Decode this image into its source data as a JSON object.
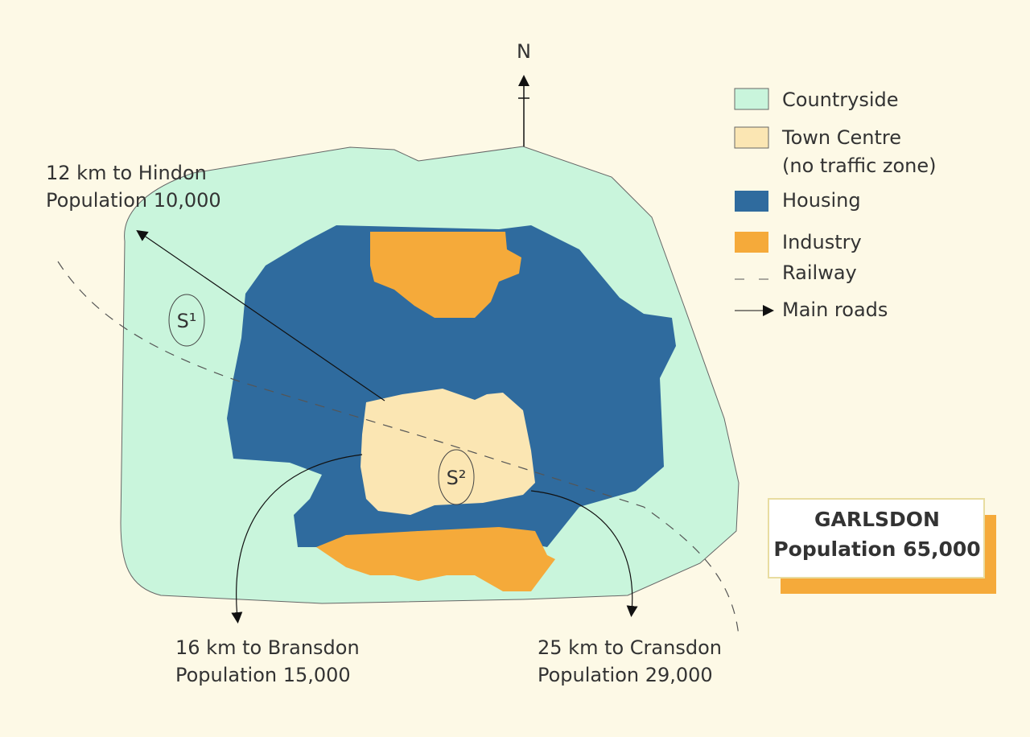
{
  "compass": "N",
  "legend": [
    {
      "label": "Countryside"
    },
    {
      "label": "Town Centre",
      "note": "(no traffic zone)"
    },
    {
      "label": "Housing"
    },
    {
      "label": "Industry"
    },
    {
      "label": "Railway"
    },
    {
      "label": "Main roads"
    }
  ],
  "destinations": [
    {
      "distance": "12 km to Hindon",
      "population": "Population 10,000"
    },
    {
      "distance": "16 km to Bransdon",
      "population": "Population 15,000"
    },
    {
      "distance": "25 km to Cransdon",
      "population": "Population 29,000"
    }
  ],
  "town": {
    "name": "GARLSDON",
    "population": "Population 65,000"
  },
  "sites": [
    "S¹",
    "S²"
  ]
}
